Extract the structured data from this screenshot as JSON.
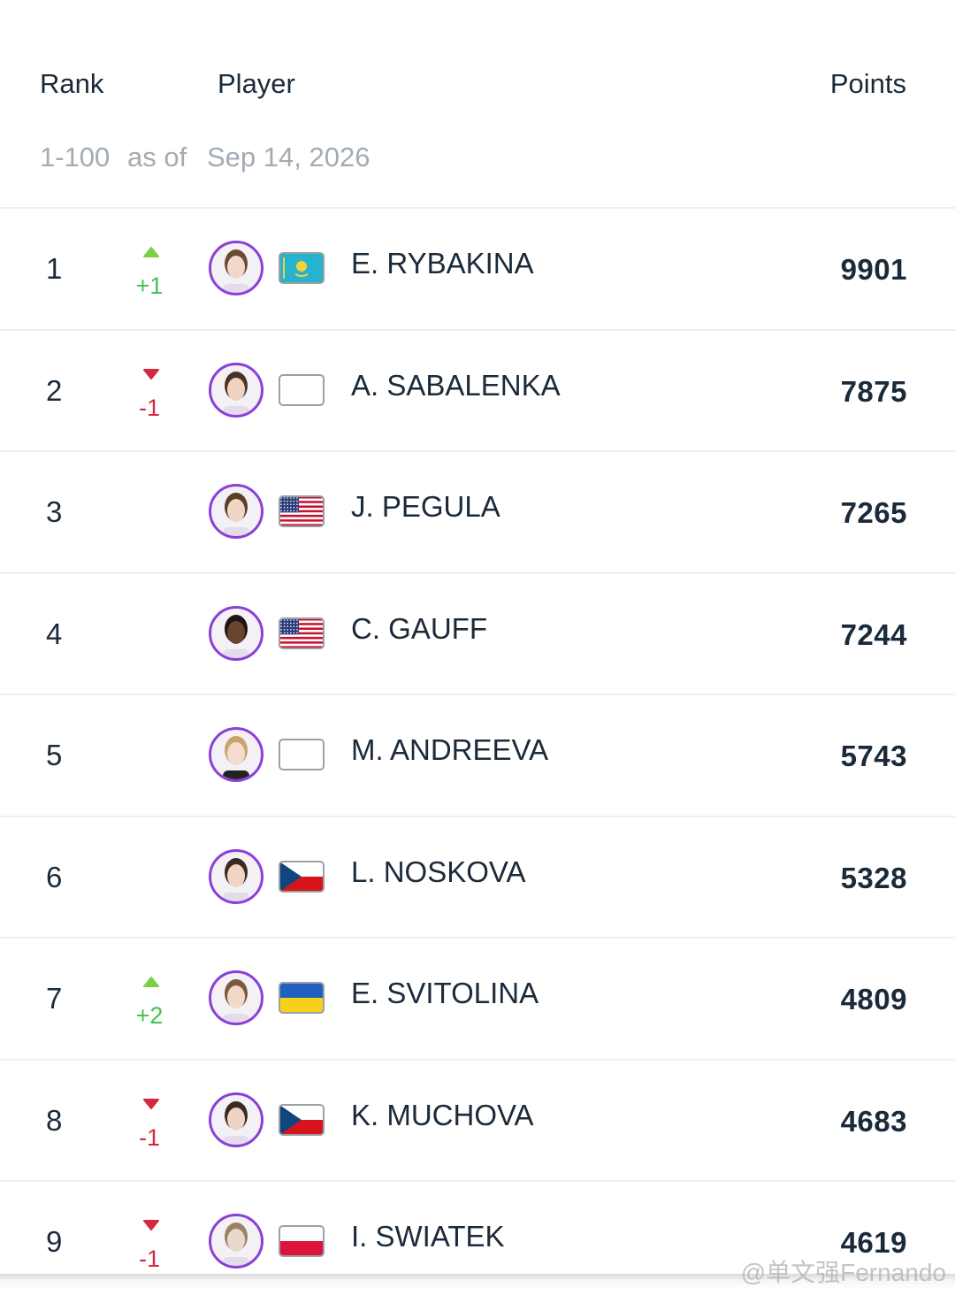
{
  "header": {
    "rank": "Rank",
    "player": "Player",
    "points": "Points"
  },
  "subtitle": {
    "range": "1-100",
    "as_of": "as of",
    "date": "Sep 14, 2026"
  },
  "rows": [
    {
      "rank": 1,
      "change": "+1",
      "name": "E. RYBAKINA",
      "points": 9901
    },
    {
      "rank": 2,
      "change": "-1",
      "name": "A. SABALENKA",
      "points": 7875
    },
    {
      "rank": 3,
      "name": "J. PEGULA",
      "points": 7265
    },
    {
      "rank": 4,
      "name": "C. GAUFF",
      "points": 7244
    },
    {
      "rank": 5,
      "name": "M. ANDREEVA",
      "points": 5743
    },
    {
      "rank": 6,
      "name": "L. NOSKOVA",
      "points": 5328
    },
    {
      "rank": 7,
      "change": "+2",
      "name": "E. SVITOLINA",
      "points": 4809
    },
    {
      "rank": 8,
      "change": "-1",
      "name": "K. MUCHOVA",
      "points": 4683
    },
    {
      "rank": 9,
      "change": "-1",
      "name": "I. SWIATEK",
      "points": 4619
    }
  ],
  "watermark": "@单文强Fernando"
}
